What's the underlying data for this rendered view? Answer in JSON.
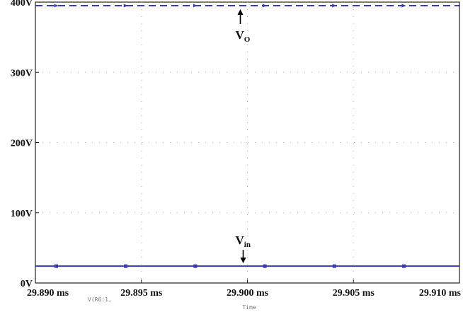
{
  "chart_data": {
    "type": "line",
    "x": [
      29.89,
      29.91
    ],
    "xlim": [
      29.89,
      29.91
    ],
    "ylim": [
      0,
      400
    ],
    "xticks": [
      29.89,
      29.895,
      29.9,
      29.905,
      29.91
    ],
    "xtick_labels": [
      "29.890 ms",
      "29.895 ms",
      "29.900 ms",
      "29.905 ms",
      "29.910 ms"
    ],
    "yticks": [
      0,
      100,
      200,
      300,
      400
    ],
    "ytick_labels": [
      "0V",
      "100V",
      "200V",
      "300V",
      "400V"
    ],
    "xlabel": "Time",
    "legend_text": "V(R6:1,",
    "grid": true,
    "series": [
      {
        "values": [
          395,
          395
        ],
        "style": "dashed",
        "color": "#3b3bb0"
      },
      {
        "values": [
          24,
          24
        ],
        "style": "solid",
        "color": "#3b3bb0"
      }
    ],
    "annotations": [
      {
        "main": "V",
        "sub": "O",
        "x": 29.9,
        "y": 395,
        "arrow": "up"
      },
      {
        "main": "V",
        "sub": "in",
        "x": 29.9,
        "y": 24,
        "arrow": "down"
      }
    ]
  }
}
